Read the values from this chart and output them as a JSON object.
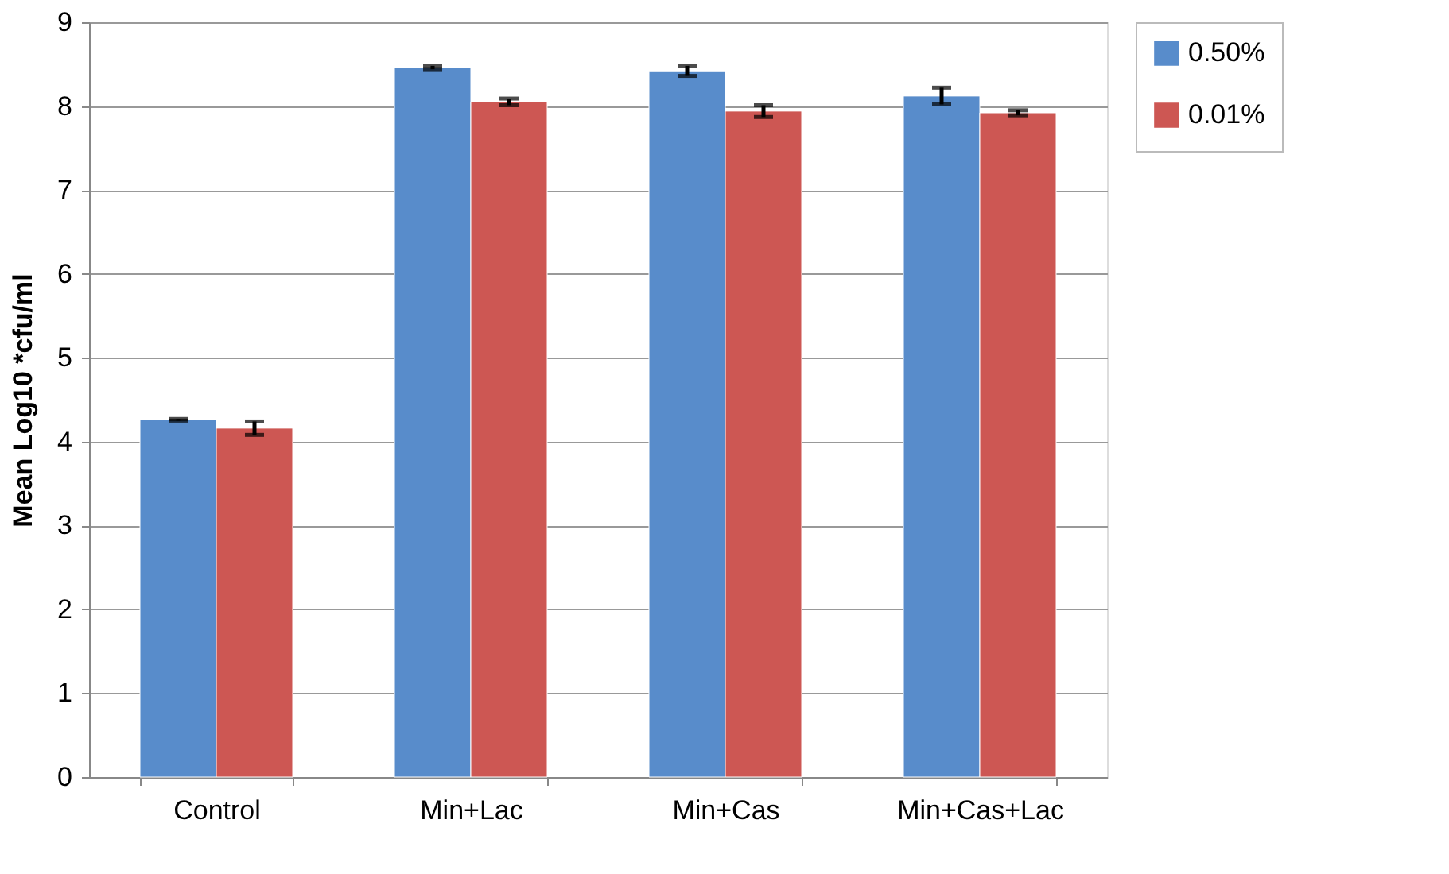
{
  "chart_data": {
    "type": "bar",
    "ylabel": "Mean Log10  *cfu/ml",
    "categories": [
      "Control",
      "Min+Lac",
      "Min+Cas",
      "Min+Cas+Lac"
    ],
    "series": [
      {
        "name": "0.50%",
        "color": "#588ccb",
        "values": [
          4.26,
          8.46,
          8.42,
          8.12
        ],
        "errors": [
          0.01,
          0.02,
          0.06,
          0.1
        ]
      },
      {
        "name": "0.01%",
        "color": "#cd5753",
        "values": [
          4.16,
          8.05,
          7.94,
          7.92
        ],
        "errors": [
          0.08,
          0.04,
          0.07,
          0.03
        ]
      }
    ],
    "ylim": [
      0,
      9
    ],
    "yticks": [
      0,
      1,
      2,
      3,
      4,
      5,
      6,
      7,
      8,
      9
    ],
    "grid": "y",
    "legend": "right"
  }
}
